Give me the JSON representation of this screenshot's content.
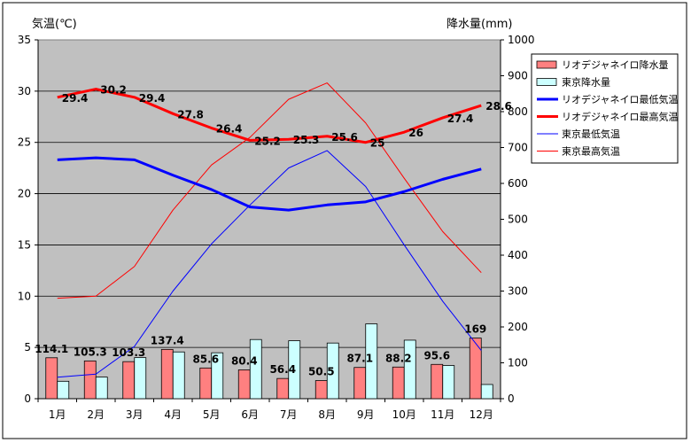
{
  "chart_data": {
    "type": "bar",
    "categories": [
      "1月",
      "2月",
      "3月",
      "4月",
      "5月",
      "6月",
      "7月",
      "8月",
      "9月",
      "10月",
      "11月",
      "12月"
    ],
    "ylabel": "気温(℃)",
    "y2label": "降水量(mm)",
    "ylim": [
      0,
      35
    ],
    "y2lim": [
      0,
      1000
    ],
    "yticks": [
      "0",
      "5",
      "10",
      "15",
      "20",
      "25",
      "30",
      "35"
    ],
    "y2ticks": [
      "0",
      "100",
      "200",
      "300",
      "400",
      "500",
      "600",
      "700",
      "800",
      "900",
      "1000"
    ],
    "legend_position": "right",
    "series": [
      {
        "name": "リオデジャネイロ降水量",
        "kind": "bar",
        "axis": "right",
        "color": "#ff8080",
        "values": [
          114.1,
          105.3,
          103.3,
          137.4,
          85.6,
          80.4,
          56.4,
          50.5,
          87.1,
          88.2,
          95.6,
          169
        ],
        "labels": [
          "114.1",
          "105.3",
          "103.3",
          "137.4",
          "85.6",
          "80.4",
          "56.4",
          "50.5",
          "87.1",
          "88.2",
          "95.6",
          "169"
        ]
      },
      {
        "name": "東京降水量",
        "kind": "bar",
        "axis": "right",
        "color": "#ccffff",
        "values": [
          48.6,
          60.2,
          114.5,
          130.3,
          128,
          164.9,
          161.5,
          155.1,
          208.5,
          163.1,
          92.5,
          39.6
        ]
      },
      {
        "name": "リオデジャネイロ最低気温",
        "kind": "line",
        "axis": "left",
        "color": "#0000ff",
        "width": "thick",
        "values": [
          23.3,
          23.5,
          23.3,
          21.8,
          20.4,
          18.7,
          18.4,
          18.9,
          19.2,
          20.2,
          21.4,
          22.4
        ]
      },
      {
        "name": "リオデジャネイロ最高気温",
        "kind": "line",
        "axis": "left",
        "color": "#ff0000",
        "width": "thick",
        "values": [
          29.4,
          30.2,
          29.4,
          27.8,
          26.4,
          25.2,
          25.3,
          25.6,
          25,
          26,
          27.4,
          28.6
        ],
        "labels": [
          "29.4",
          "30.2",
          "29.4",
          "27.8",
          "26.4",
          "25.2",
          "25.3",
          "25.6",
          "25",
          "26",
          "27.4",
          "28.6"
        ]
      },
      {
        "name": "東京最低気温",
        "kind": "line",
        "axis": "left",
        "color": "#0000ff",
        "width": "thin",
        "values": [
          2.1,
          2.4,
          5.1,
          10.5,
          15.1,
          18.9,
          22.5,
          24.2,
          20.7,
          15.0,
          9.5,
          4.7
        ]
      },
      {
        "name": "東京最高気温",
        "kind": "line",
        "axis": "left",
        "color": "#ff0000",
        "width": "thin",
        "values": [
          9.8,
          10.0,
          12.9,
          18.4,
          22.8,
          25.5,
          29.2,
          30.8,
          26.9,
          21.5,
          16.3,
          12.3
        ]
      }
    ],
    "plot_background": "#c0c0c0",
    "grid": "horizontal"
  }
}
